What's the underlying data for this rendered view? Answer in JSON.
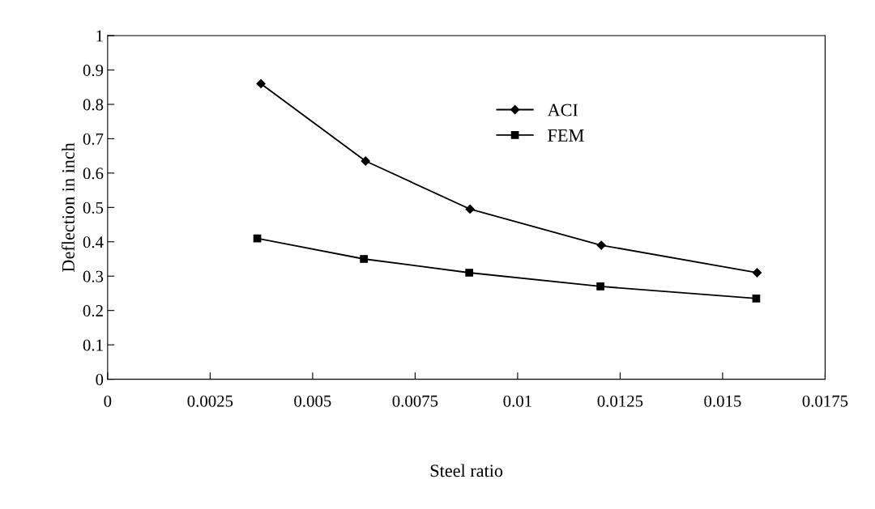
{
  "chart_data": {
    "type": "line",
    "xlabel": "Steel ratio",
    "ylabel": "Deflection in inch",
    "series": [
      {
        "name": "ACI",
        "color": "#000000",
        "marker": "diamond",
        "x": [
          0.00374,
          0.00629,
          0.00884,
          0.01204,
          0.01584
        ],
        "values": [
          0.86,
          0.635,
          0.495,
          0.39,
          0.31
        ]
      },
      {
        "name": "FEM",
        "color": "#000000",
        "marker": "square",
        "x": [
          0.00365,
          0.00625,
          0.00882,
          0.01202,
          0.01582
        ],
        "values": [
          0.41,
          0.35,
          0.31,
          0.27,
          0.235
        ]
      }
    ],
    "xlim": [
      0,
      0.0175
    ],
    "xticks": [
      0,
      0.0025,
      0.005,
      0.0075,
      0.01,
      0.0125,
      0.015,
      0.0175
    ],
    "ylim": [
      0,
      1
    ],
    "yticks": [
      0,
      0.1,
      0.2,
      0.3,
      0.4,
      0.5,
      0.6,
      0.7,
      0.8,
      0.9,
      1
    ],
    "grid": false,
    "legend": "top center",
    "line_style": "solid"
  }
}
